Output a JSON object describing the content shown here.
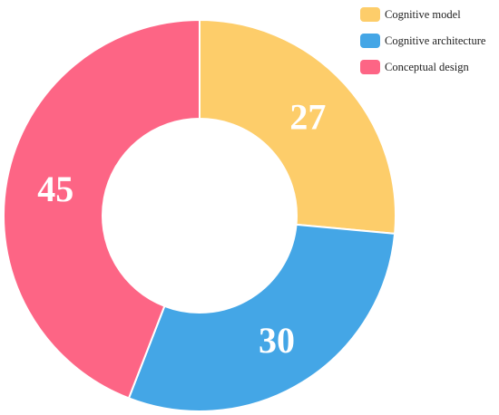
{
  "chart_data": {
    "type": "pie",
    "variant": "doughnut",
    "categories": [
      "Cognitive model",
      "Cognitive architecture",
      "Conceptual design"
    ],
    "values": [
      27,
      30,
      45
    ],
    "colors": [
      "#FDCD6A",
      "#44A6E6",
      "#FD6585"
    ],
    "legend_position": "top-right",
    "start_angle": "top",
    "direction": "clockwise"
  }
}
